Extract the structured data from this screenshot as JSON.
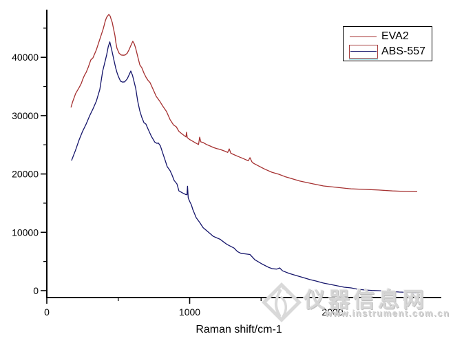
{
  "figure": {
    "background": "#ffffff",
    "axis_color": "#000000",
    "watermark": {
      "site_name": "仪器信息网",
      "site_url": "www.instrument.com.cn",
      "color": "#d6d6d6",
      "logo": "instrument-diamond-logo"
    },
    "legend": {
      "position": "top-right",
      "border_color": "#000000",
      "selected_entry_box_color": "#a84040",
      "extra_line_color": "#b2ecf2"
    }
  },
  "chart_data": {
    "type": "line",
    "title": "",
    "xlabel": "Raman shift/cm-1",
    "ylabel": "",
    "xlim": [
      0,
      2760
    ],
    "ylim": [
      -1200,
      48200
    ],
    "grid": false,
    "legend_position": "top-right",
    "x_ticks_major": [
      0,
      1000,
      2000
    ],
    "x_ticks_minor": [
      500,
      1500,
      2500
    ],
    "y_ticks_major": [
      0,
      10000,
      20000,
      30000,
      40000
    ],
    "y_ticks_minor": [
      5000,
      15000,
      25000,
      35000,
      45000
    ],
    "series": [
      {
        "name": "ABS-557",
        "color": "#15156b",
        "points": [
          [
            173,
            22300
          ],
          [
            200,
            24000
          ],
          [
            226,
            25850
          ],
          [
            250,
            27300
          ],
          [
            275,
            28550
          ],
          [
            300,
            30000
          ],
          [
            323,
            31150
          ],
          [
            347,
            32500
          ],
          [
            371,
            34500
          ],
          [
            391,
            37600
          ],
          [
            405,
            39000
          ],
          [
            419,
            40400
          ],
          [
            430,
            41800
          ],
          [
            441,
            42650
          ],
          [
            455,
            41200
          ],
          [
            472,
            39300
          ],
          [
            482,
            38200
          ],
          [
            491,
            37400
          ],
          [
            501,
            36700
          ],
          [
            516,
            35900
          ],
          [
            530,
            35750
          ],
          [
            545,
            35800
          ],
          [
            563,
            36300
          ],
          [
            578,
            37100
          ],
          [
            588,
            37650
          ],
          [
            600,
            36900
          ],
          [
            612,
            35700
          ],
          [
            622,
            34700
          ],
          [
            636,
            32500
          ],
          [
            651,
            30800
          ],
          [
            665,
            29700
          ],
          [
            680,
            28800
          ],
          [
            694,
            28550
          ],
          [
            708,
            27750
          ],
          [
            732,
            26450
          ],
          [
            756,
            25450
          ],
          [
            770,
            25250
          ],
          [
            781,
            25300
          ],
          [
            795,
            24800
          ],
          [
            814,
            23400
          ],
          [
            829,
            22300
          ],
          [
            843,
            21250
          ],
          [
            863,
            20550
          ],
          [
            877,
            19800
          ],
          [
            891,
            18900
          ],
          [
            911,
            18300
          ],
          [
            925,
            17100
          ],
          [
            950,
            16750
          ],
          [
            970,
            16500
          ],
          [
            981,
            16450
          ],
          [
            985,
            17900
          ],
          [
            990,
            15900
          ],
          [
            1000,
            15300
          ],
          [
            1012,
            14700
          ],
          [
            1022,
            13900
          ],
          [
            1046,
            12500
          ],
          [
            1070,
            11700
          ],
          [
            1094,
            10800
          ],
          [
            1118,
            10300
          ],
          [
            1142,
            9800
          ],
          [
            1166,
            9300
          ],
          [
            1214,
            8800
          ],
          [
            1240,
            8300
          ],
          [
            1263,
            7900
          ],
          [
            1311,
            7300
          ],
          [
            1335,
            6700
          ],
          [
            1359,
            6400
          ],
          [
            1390,
            6300
          ],
          [
            1422,
            6200
          ],
          [
            1456,
            5300
          ],
          [
            1504,
            4600
          ],
          [
            1552,
            4000
          ],
          [
            1580,
            3750
          ],
          [
            1610,
            3700
          ],
          [
            1630,
            3900
          ],
          [
            1650,
            3400
          ],
          [
            1697,
            2950
          ],
          [
            1745,
            2600
          ],
          [
            1793,
            2250
          ],
          [
            1841,
            1900
          ],
          [
            1884,
            1650
          ],
          [
            1937,
            1300
          ],
          [
            1986,
            1060
          ],
          [
            2034,
            830
          ],
          [
            2082,
            590
          ],
          [
            2130,
            470
          ],
          [
            2178,
            240
          ],
          [
            2227,
            120
          ],
          [
            2275,
            30
          ],
          [
            2323,
            0
          ],
          [
            2371,
            -100
          ],
          [
            2420,
            -150
          ],
          [
            2468,
            -240
          ],
          [
            2516,
            -280
          ],
          [
            2565,
            -320
          ],
          [
            2588,
            -350
          ]
        ]
      },
      {
        "name": "EVA2",
        "color": "#a53030",
        "points": [
          [
            169,
            31400
          ],
          [
            180,
            32300
          ],
          [
            202,
            33800
          ],
          [
            226,
            34800
          ],
          [
            241,
            35500
          ],
          [
            251,
            36200
          ],
          [
            263,
            36900
          ],
          [
            275,
            37400
          ],
          [
            290,
            38300
          ],
          [
            308,
            39550
          ],
          [
            323,
            39900
          ],
          [
            347,
            41300
          ],
          [
            371,
            43100
          ],
          [
            395,
            44900
          ],
          [
            410,
            46300
          ],
          [
            420,
            46900
          ],
          [
            434,
            47350
          ],
          [
            443,
            47100
          ],
          [
            453,
            46300
          ],
          [
            458,
            46000
          ],
          [
            467,
            44900
          ],
          [
            477,
            43700
          ],
          [
            483,
            42600
          ],
          [
            491,
            41550
          ],
          [
            506,
            40700
          ],
          [
            520,
            40400
          ],
          [
            535,
            40350
          ],
          [
            549,
            40400
          ],
          [
            563,
            40700
          ],
          [
            578,
            41400
          ],
          [
            588,
            42000
          ],
          [
            602,
            42750
          ],
          [
            612,
            42300
          ],
          [
            622,
            41550
          ],
          [
            636,
            40150
          ],
          [
            651,
            38700
          ],
          [
            665,
            38200
          ],
          [
            680,
            37300
          ],
          [
            694,
            36600
          ],
          [
            710,
            36000
          ],
          [
            723,
            35650
          ],
          [
            742,
            34600
          ],
          [
            766,
            33300
          ],
          [
            790,
            32500
          ],
          [
            814,
            31550
          ],
          [
            838,
            30700
          ],
          [
            863,
            29300
          ],
          [
            887,
            28400
          ],
          [
            906,
            28100
          ],
          [
            925,
            27300
          ],
          [
            950,
            26800
          ],
          [
            969,
            26450
          ],
          [
            974,
            26350
          ],
          [
            978,
            27150
          ],
          [
            983,
            26250
          ],
          [
            1000,
            25900
          ],
          [
            1022,
            25600
          ],
          [
            1046,
            25250
          ],
          [
            1062,
            25050
          ],
          [
            1070,
            26300
          ],
          [
            1078,
            25500
          ],
          [
            1094,
            25400
          ],
          [
            1118,
            25050
          ],
          [
            1142,
            24800
          ],
          [
            1166,
            24550
          ],
          [
            1190,
            24350
          ],
          [
            1214,
            24200
          ],
          [
            1248,
            23900
          ],
          [
            1266,
            23700
          ],
          [
            1277,
            24300
          ],
          [
            1288,
            23550
          ],
          [
            1311,
            23300
          ],
          [
            1335,
            23050
          ],
          [
            1369,
            22700
          ],
          [
            1393,
            22450
          ],
          [
            1410,
            22250
          ],
          [
            1422,
            22800
          ],
          [
            1435,
            22100
          ],
          [
            1446,
            21850
          ],
          [
            1480,
            21400
          ],
          [
            1528,
            20800
          ],
          [
            1576,
            20300
          ],
          [
            1624,
            19950
          ],
          [
            1672,
            19500
          ],
          [
            1721,
            19150
          ],
          [
            1769,
            18800
          ],
          [
            1817,
            18550
          ],
          [
            1865,
            18300
          ],
          [
            1937,
            17950
          ],
          [
            2034,
            17700
          ],
          [
            2130,
            17450
          ],
          [
            2227,
            17350
          ],
          [
            2323,
            17250
          ],
          [
            2420,
            17100
          ],
          [
            2516,
            17000
          ],
          [
            2593,
            16950
          ]
        ]
      }
    ]
  }
}
